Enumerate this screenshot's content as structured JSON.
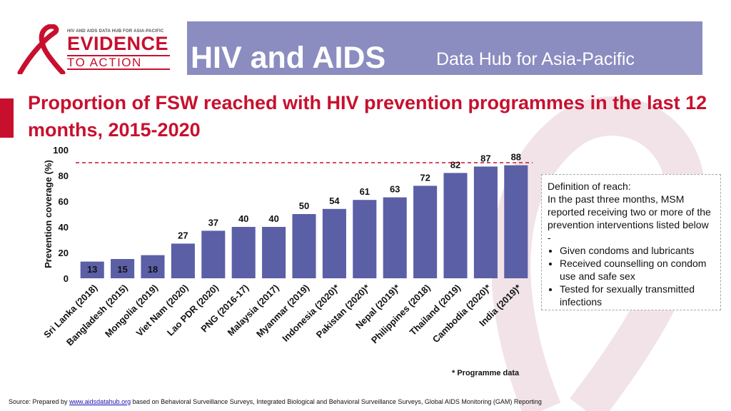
{
  "header": {
    "logo_subtitle": "HIV AND AIDS DATA HUB FOR ASIA-PACIFIC",
    "logo_main": "EVIDENCE",
    "logo_secondary": "TO ACTION",
    "title": "HIV and AIDS",
    "subtitle": "Data Hub for Asia-Pacific"
  },
  "slide_title": "Proportion of FSW reached with HIV prevention programmes in the last 12 months, 2015-2020",
  "chart_data": {
    "type": "bar",
    "title": "",
    "xlabel": "",
    "ylabel": "Prevention coverage (%)",
    "ylim": [
      0,
      100
    ],
    "yticks": [
      0,
      20,
      40,
      60,
      80,
      100
    ],
    "reference_line": 90,
    "grid": false,
    "categories": [
      "Sri Lanka (2018)",
      "Bangladesh (2015)",
      "Mongolia (2019)",
      "Viet Nam (2020)",
      "Lao PDR (2020)",
      "PNG (2016-17)",
      "Malaysia (2017)",
      "Myanmar (2019)",
      "Indonesia (2020)*",
      "Pakistan (2020)*",
      "Nepal (2019)*",
      "Philippines (2018)",
      "Thailand (2019)",
      "Cambodia (2020)*",
      "India (2019)*"
    ],
    "values": [
      13,
      15,
      18,
      27,
      37,
      40,
      40,
      50,
      54,
      61,
      63,
      72,
      82,
      87,
      88
    ],
    "bar_color": "#5b5fa6"
  },
  "definition": {
    "heading": "Definition of reach:",
    "text": "In the past three months, MSM reported receiving two or more of the prevention interventions listed below -",
    "items": [
      "Given condoms and lubricants",
      "Received counselling on condom use and safe sex",
      "Tested for sexually transmitted infections"
    ]
  },
  "footnote": "* Programme data",
  "source": {
    "prefix": "Source: Prepared by ",
    "link": "www.aidsdatahub.org",
    "suffix": " based on Behavioral Surveillance Surveys, Integrated Biological and Behavioral Surveillance Surveys, Global AIDS Monitoring (GAM) Reporting"
  },
  "colors": {
    "header": "#8b8cbf",
    "accent": "#c8102e",
    "bar": "#5b5fa6"
  }
}
